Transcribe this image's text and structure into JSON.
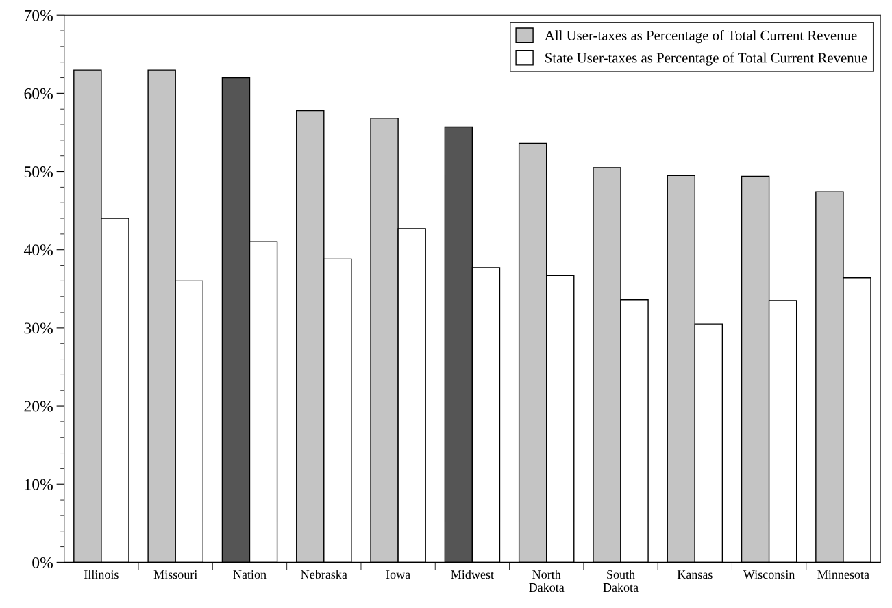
{
  "chart_data": {
    "type": "bar",
    "categories": [
      "Illinois",
      "Missouri",
      "Nation",
      "Nebraska",
      "Iowa",
      "Midwest",
      "North\nDakota",
      "South\nDakota",
      "Kansas",
      "Wisconsin",
      "Minnesota"
    ],
    "series": [
      {
        "name": "All User-taxes as Percentage of Total Current Revenue",
        "color": "#c4c4c4",
        "colors": [
          "#c4c4c4",
          "#c4c4c4",
          "#555555",
          "#c4c4c4",
          "#c4c4c4",
          "#555555",
          "#c4c4c4",
          "#c4c4c4",
          "#c4c4c4",
          "#c4c4c4",
          "#c4c4c4"
        ],
        "values": [
          63,
          63,
          62,
          57.8,
          56.8,
          55.7,
          53.6,
          50.5,
          49.5,
          49.4,
          47.4
        ]
      },
      {
        "name": "State User-taxes as Percentage of Total Current Revenue",
        "color": "#ffffff",
        "values": [
          44,
          36,
          41,
          38.8,
          42.7,
          37.7,
          36.7,
          33.6,
          30.5,
          33.5,
          36.4
        ]
      }
    ],
    "ylim": [
      0,
      70
    ],
    "yticks": [
      {
        "value": 0,
        "label": "0%"
      },
      {
        "value": 10,
        "label": "10%"
      },
      {
        "value": 20,
        "label": "20%"
      },
      {
        "value": 30,
        "label": "30%"
      },
      {
        "value": 40,
        "label": "40%"
      },
      {
        "value": 50,
        "label": "50%"
      },
      {
        "value": 60,
        "label": "60%"
      },
      {
        "value": 70,
        "label": "70%"
      }
    ],
    "legend": "top right",
    "grid": false
  }
}
